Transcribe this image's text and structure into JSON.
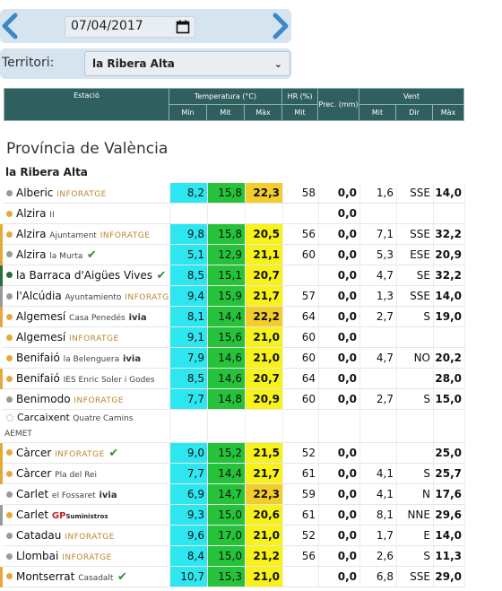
{
  "date": {
    "value": "07/04/2017"
  },
  "territori": {
    "label": "Territori:",
    "selected": "la Ribera Alta"
  },
  "header": {
    "estacio": "Estació",
    "temperatura": "Temperatura (°C)",
    "hr": "HR (%)",
    "prec": "Prec. (mm)",
    "vent": "Vent",
    "t_min": "Mín",
    "t_mit": "Mit",
    "t_max": "Màx",
    "hr_mit": "Mit",
    "v_mit": "Mit",
    "v_dir": "Dir",
    "v_max": "Màx"
  },
  "province": "Província de València",
  "region": "la Ribera Alta",
  "stations": [
    {
      "name": "Alberic",
      "sub": "",
      "tag": "INFORATGE",
      "tmin": "8,2",
      "tmit": "15,8",
      "tmax": "22,3",
      "hr": "58",
      "prec": "0,0",
      "vmit": "1,6",
      "dir": "SSE",
      "vmax": "14,0"
    },
    {
      "name": "Alzira",
      "sub": "II",
      "tag": "",
      "tmin": "",
      "tmit": "",
      "tmax": "",
      "hr": "",
      "prec": "0,0",
      "vmit": "",
      "dir": "",
      "vmax": ""
    },
    {
      "name": "Alzira",
      "sub": "Ajuntament",
      "tag": "INFORATGE",
      "tmin": "9,8",
      "tmit": "15,8",
      "tmax": "20,5",
      "hr": "56",
      "prec": "0,0",
      "vmit": "7,1",
      "dir": "SSE",
      "vmax": "32,2"
    },
    {
      "name": "Alzira",
      "sub": "la Murta",
      "tag": "",
      "tmin": "5,1",
      "tmit": "12,9",
      "tmax": "21,1",
      "hr": "60",
      "prec": "0,0",
      "vmit": "5,3",
      "dir": "ESE",
      "vmax": "20,9"
    },
    {
      "name": "la Barraca d'Aigües Vives",
      "sub": "",
      "tag": "",
      "tmin": "8,5",
      "tmit": "15,1",
      "tmax": "20,7",
      "hr": "",
      "prec": "0,0",
      "vmit": "4,7",
      "dir": "SE",
      "vmax": "32,2"
    },
    {
      "name": "l'Alcúdia",
      "sub": "Ayuntamiento",
      "tag": "INFORATGE",
      "tmin": "9,4",
      "tmit": "15,9",
      "tmax": "21,7",
      "hr": "57",
      "prec": "0,0",
      "vmit": "1,3",
      "dir": "SSE",
      "vmax": "14,0"
    },
    {
      "name": "Algemesí",
      "sub": "Casa Penedés",
      "tag": "ivia",
      "tmin": "8,1",
      "tmit": "14,4",
      "tmax": "22,2",
      "hr": "64",
      "prec": "0,0",
      "vmit": "2,7",
      "dir": "S",
      "vmax": "19,0"
    },
    {
      "name": "Algemesí",
      "sub": "",
      "tag": "INFORATGE",
      "tmin": "9,1",
      "tmit": "15,6",
      "tmax": "21,0",
      "hr": "60",
      "prec": "0,0",
      "vmit": "",
      "dir": "",
      "vmax": ""
    },
    {
      "name": "Benifaió",
      "sub": "la Belenguera",
      "tag": "ivia",
      "tmin": "7,9",
      "tmit": "14,6",
      "tmax": "21,0",
      "hr": "60",
      "prec": "0,0",
      "vmit": "4,7",
      "dir": "NO",
      "vmax": "20,2"
    },
    {
      "name": "Benifaió",
      "sub": "IES Enric Soler i Godes",
      "tag": "",
      "tmin": "8,5",
      "tmit": "14,6",
      "tmax": "20,7",
      "hr": "64",
      "prec": "0,0",
      "vmit": "",
      "dir": "",
      "vmax": "28,0"
    },
    {
      "name": "Benimodo",
      "sub": "",
      "tag": "INFORATGE",
      "tmin": "7,7",
      "tmit": "14,8",
      "tmax": "20,9",
      "hr": "60",
      "prec": "0,0",
      "vmit": "2,7",
      "dir": "S",
      "vmax": "15,0"
    },
    {
      "name": "Carcaixent",
      "sub": "Quatre Camins",
      "line2": "AEMET",
      "tag": "",
      "tmin": "",
      "tmit": "",
      "tmax": "",
      "hr": "",
      "prec": "",
      "vmit": "",
      "dir": "",
      "vmax": ""
    },
    {
      "name": "Càrcer",
      "sub": "",
      "tag": "INFORATGE",
      "tmin": "9,0",
      "tmit": "15,2",
      "tmax": "21,5",
      "hr": "52",
      "prec": "0,0",
      "vmit": "",
      "dir": "",
      "vmax": "25,0"
    },
    {
      "name": "Càrcer",
      "sub": "Pla del Rei",
      "tag": "",
      "tmin": "7,7",
      "tmit": "14,4",
      "tmax": "21,7",
      "hr": "61",
      "prec": "0,0",
      "vmit": "4,1",
      "dir": "S",
      "vmax": "25,7"
    },
    {
      "name": "Carlet",
      "sub": "el Fossaret",
      "tag": "ivia",
      "tmin": "6,9",
      "tmit": "14,7",
      "tmax": "22,3",
      "hr": "59",
      "prec": "0,0",
      "vmit": "4,1",
      "dir": "N",
      "vmax": "17,6"
    },
    {
      "name": "Carlet",
      "sub": "",
      "tag": "GP",
      "tag_small": "Suministros",
      "tmin": "9,3",
      "tmit": "15,0",
      "tmax": "20,6",
      "hr": "61",
      "prec": "0,0",
      "vmit": "8,1",
      "dir": "NNE",
      "vmax": "29,6"
    },
    {
      "name": "Catadau",
      "sub": "",
      "tag": "INFORATGE",
      "tmin": "9,6",
      "tmit": "17,0",
      "tmax": "21,0",
      "hr": "52",
      "prec": "0,0",
      "vmit": "1,7",
      "dir": "E",
      "vmax": "14,0"
    },
    {
      "name": "Llombai",
      "sub": "",
      "tag": "INFORATGE",
      "tmin": "8,4",
      "tmit": "15,0",
      "tmax": "21,2",
      "hr": "56",
      "prec": "0,0",
      "vmit": "2,6",
      "dir": "S",
      "vmax": "11,3"
    },
    {
      "name": "Montserrat",
      "sub": "Casadalt",
      "tag": "",
      "tmin": "10,7",
      "tmit": "15,3",
      "tmax": "21,0",
      "hr": "",
      "prec": "0,0",
      "vmit": "6,8",
      "dir": "SSE",
      "vmax": "29,0"
    }
  ]
}
